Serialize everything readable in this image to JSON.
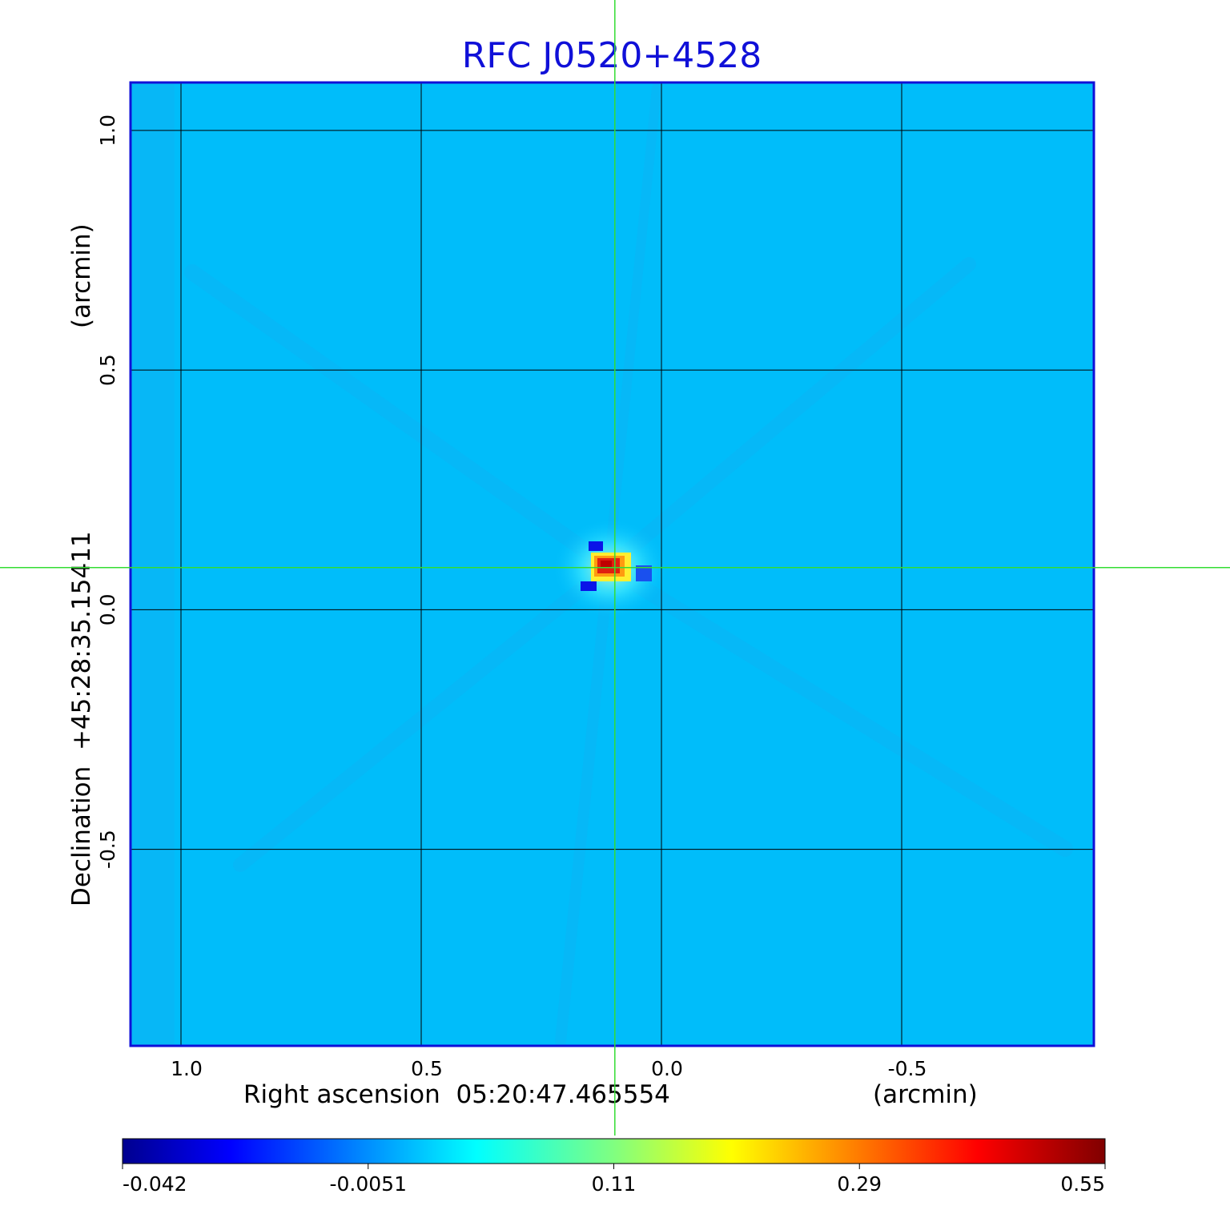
{
  "chart_data": {
    "type": "heatmap",
    "title": "RFC J0520+4528",
    "xlabel": "Right ascension  05:20:47.465554",
    "xunit": "(arcmin)",
    "ylabel": "Declination  +45:28:35.15411",
    "yunit": "(arcmin)",
    "xlim": [
      1.105,
      -0.9
    ],
    "ylim": [
      -0.91,
      1.1
    ],
    "x_ticks": [
      {
        "value": 1.0,
        "label": "1.0"
      },
      {
        "value": 0.5,
        "label": "0.5"
      },
      {
        "value": 0.0,
        "label": "0.0"
      },
      {
        "value": -0.5,
        "label": "-0.5"
      }
    ],
    "y_ticks": [
      {
        "value": 1.0,
        "label": "1.0"
      },
      {
        "value": 0.5,
        "label": "0.5"
      },
      {
        "value": 0.0,
        "label": "0.0"
      },
      {
        "value": -0.5,
        "label": "-0.5"
      }
    ],
    "grid": true,
    "crosshair": {
      "x": 0.097,
      "y": 0.088,
      "color": "#33dd33"
    },
    "colormap": "jet",
    "colorbar": {
      "position": "bottom",
      "tick_labels": [
        "-0.042",
        "-0.0051",
        "0.11",
        "0.29",
        "0.55"
      ]
    },
    "peak": {
      "x": 0.11,
      "y": 0.09,
      "value": 0.55
    },
    "background_value": 0.0,
    "colors": {
      "title": "#1010d8",
      "frame": "#1010d8",
      "grid": "#000000",
      "crosshair": "#33dd33"
    }
  }
}
